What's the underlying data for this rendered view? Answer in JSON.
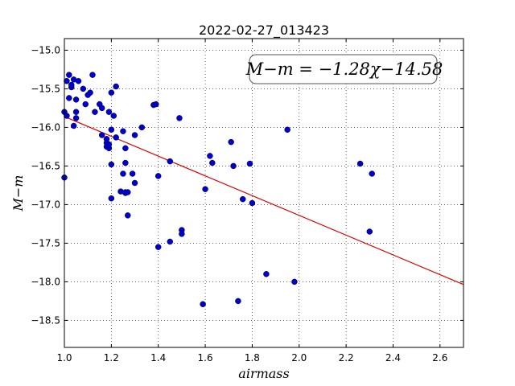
{
  "chart_data": {
    "type": "scatter",
    "title": "2022-02-27_013423",
    "xlabel": "airmass",
    "ylabel": "M−m",
    "xlim": [
      1.0,
      2.7
    ],
    "ylim": [
      -14.85,
      -18.85
    ],
    "y_inverted": true,
    "grid": true,
    "x_ticks": [
      "1.0",
      "1.2",
      "1.4",
      "1.6",
      "1.8",
      "2.0",
      "2.2",
      "2.4",
      "2.6"
    ],
    "x_tick_values": [
      1.0,
      1.2,
      1.4,
      1.6,
      1.8,
      2.0,
      2.2,
      2.4,
      2.6
    ],
    "y_ticks": [
      "−15.0",
      "−15.5",
      "−16.0",
      "−16.5",
      "−17.0",
      "−17.5",
      "−18.0",
      "−18.5"
    ],
    "y_tick_values": [
      -15.0,
      -15.5,
      -16.0,
      -16.5,
      -17.0,
      -17.5,
      -18.0,
      -18.5
    ],
    "annotation": "M−m = −1.28χ−14.58",
    "series": [
      {
        "marker_color": "#0000cc",
        "x": [
          1.0,
          1.0,
          1.01,
          1.02,
          1.02,
          1.03,
          1.03,
          1.04,
          1.04,
          1.05,
          1.05,
          1.05,
          1.06,
          1.08,
          1.09,
          1.1,
          1.11,
          1.12,
          1.13,
          1.15,
          1.16,
          1.16,
          1.18,
          1.18,
          1.18,
          1.19,
          1.19,
          1.19,
          1.2,
          1.2,
          1.2,
          1.2,
          1.21,
          1.22,
          1.22,
          1.24,
          1.25,
          1.25,
          1.26,
          1.26,
          1.26,
          1.26,
          1.27,
          1.27,
          1.29,
          1.3,
          1.3,
          1.33,
          1.38,
          1.39,
          1.4,
          1.4,
          1.45,
          1.45,
          1.49,
          1.5,
          1.5,
          1.59,
          1.6,
          1.62,
          1.63,
          1.71,
          1.72,
          1.74,
          1.76,
          1.79,
          1.8,
          1.86,
          1.95,
          1.98,
          2.26,
          2.3,
          2.31,
          1.01
        ],
        "y": [
          -15.8,
          -16.65,
          -15.4,
          -15.62,
          -15.32,
          -15.48,
          -15.45,
          -15.98,
          -15.38,
          -15.8,
          -15.88,
          -15.64,
          -15.4,
          -15.5,
          -15.7,
          -15.58,
          -15.55,
          -15.32,
          -15.8,
          -15.7,
          -15.75,
          -16.1,
          -16.2,
          -16.15,
          -16.25,
          -16.27,
          -16.22,
          -15.8,
          -15.55,
          -16.03,
          -16.48,
          -16.92,
          -15.85,
          -16.13,
          -15.47,
          -16.83,
          -16.6,
          -16.05,
          -16.46,
          -16.85,
          -16.84,
          -16.27,
          -17.14,
          -16.84,
          -16.6,
          -16.72,
          -16.1,
          -16.0,
          -15.71,
          -15.7,
          -16.63,
          -17.55,
          -16.44,
          -17.48,
          -15.88,
          -17.33,
          -17.38,
          -18.29,
          -16.8,
          -16.37,
          -16.46,
          -16.19,
          -16.5,
          -18.25,
          -16.93,
          -16.47,
          -16.98,
          -17.9,
          -16.03,
          -18.0,
          -16.47,
          -17.35,
          -16.6,
          -15.85
        ]
      }
    ],
    "fit": {
      "slope": -1.28,
      "intercept": -14.58,
      "color": "#dd0000"
    }
  }
}
